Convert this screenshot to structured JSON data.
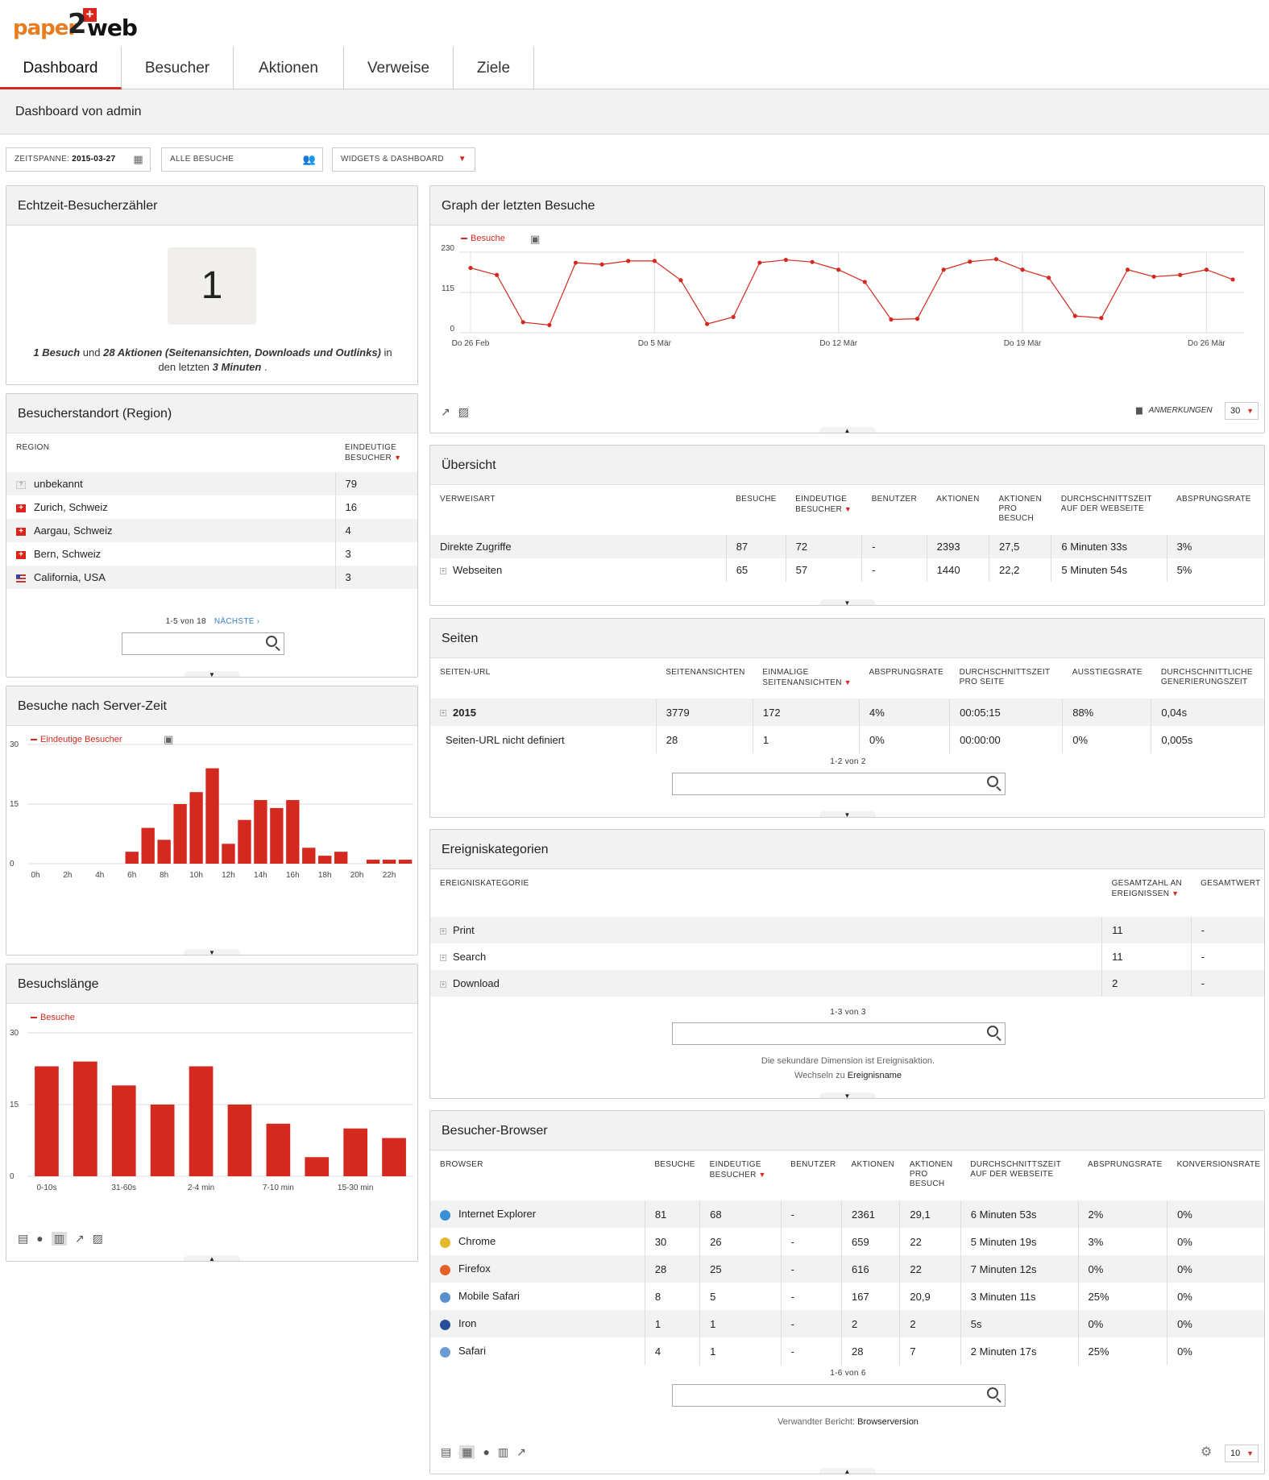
{
  "app": {
    "logo": {
      "text_a": "paper",
      "text_b": "2",
      "text_c": "web"
    },
    "nav": [
      "Dashboard",
      "Besucher",
      "Aktionen",
      "Verweise",
      "Ziele"
    ],
    "dashboard_title": "Dashboard von admin"
  },
  "controls": {
    "period_label": "ZEITSPANNE:",
    "period_value": "2015-03-27",
    "segment": "ALLE BESUCHE",
    "widgets_menu": "WIDGETS & DASHBOARD"
  },
  "realtime": {
    "title": "Echtzeit-Besucherzähler",
    "count": "1",
    "line_a": "1 Besuch",
    "line_b": " und ",
    "line_c": "28 Aktionen (Seitenansichten, Downloads und Outlinks)",
    "line_d": " in den letzten ",
    "line_e": "3 Minuten",
    "line_f": " ."
  },
  "location": {
    "title": "Besucherstandort (Region)",
    "col_region": "REGION",
    "col_unique": "EINDEUTIGE BESUCHER",
    "rows": [
      {
        "name": "unbekannt",
        "flag": "unknown",
        "value": "79"
      },
      {
        "name": "Zurich, Schweiz",
        "flag": "ch",
        "value": "16"
      },
      {
        "name": "Aargau, Schweiz",
        "flag": "ch",
        "value": "4"
      },
      {
        "name": "Bern, Schweiz",
        "flag": "ch",
        "value": "3"
      },
      {
        "name": "California, USA",
        "flag": "us",
        "value": "3"
      }
    ],
    "pager": "1-5 von 18",
    "next": "NÄCHSTE ›"
  },
  "server_time": {
    "title": "Besuche nach Server-Zeit",
    "legend": "Eindeutige Besucher"
  },
  "visit_length": {
    "title": "Besuchslänge",
    "legend": "Besuche"
  },
  "graph": {
    "title": "Graph der letzten Besuche",
    "legend": "Besuche",
    "annotations": "ANMERKUNGEN",
    "limit": "30"
  },
  "overview": {
    "title": "Übersicht",
    "columns": [
      "VERWEISART",
      "BESUCHE",
      "EINDEUTIGE BESUCHER",
      "BENUTZER",
      "AKTIONEN",
      "AKTIONEN PRO BESUCH",
      "DURCHSCHNITTSZEIT AUF DER WEBSEITE",
      "ABSPRUNGSRATE"
    ],
    "rows": [
      [
        "Direkte Zugriffe",
        "87",
        "72",
        "-",
        "2393",
        "27,5",
        "6 Minuten 33s",
        "3%"
      ],
      [
        "Webseiten",
        "65",
        "57",
        "-",
        "1440",
        "22,2",
        "5 Minuten 54s",
        "5%"
      ]
    ]
  },
  "pages": {
    "title": "Seiten",
    "columns": [
      "SEITEN-URL",
      "SEITENANSICHTEN",
      "EINMALIGE SEITENANSICHTEN",
      "ABSPRUNGSRATE",
      "DURCHSCHNITTSZEIT PRO SEITE",
      "AUSSTIEGSRATE",
      "DURCHSCHNITTLICHE GENERIERUNGSZEIT"
    ],
    "rows": [
      [
        "2015",
        "3779",
        "172",
        "4%",
        "00:05:15",
        "88%",
        "0,04s"
      ],
      [
        "Seiten-URL nicht definiert",
        "28",
        "1",
        "0%",
        "00:00:00",
        "0%",
        "0,005s"
      ]
    ],
    "pager": "1-2 von 2"
  },
  "events": {
    "title": "Ereigniskategorien",
    "columns": [
      "EREIGNISKATEGORIE",
      "GESAMTZAHL AN EREIGNISSEN",
      "GESAMTWERT"
    ],
    "rows": [
      [
        "Print",
        "11",
        "-"
      ],
      [
        "Search",
        "11",
        "-"
      ],
      [
        "Download",
        "2",
        "-"
      ]
    ],
    "pager": "1-3 von 3",
    "note_a": "Die sekundäre Dimension ist Ereignisaktion.",
    "note_b": "Wechseln zu",
    "note_link": "Ereignisname"
  },
  "browsers": {
    "title": "Besucher-Browser",
    "columns": [
      "BROWSER",
      "BESUCHE",
      "EINDEUTIGE BESUCHER",
      "BENUTZER",
      "AKTIONEN",
      "AKTIONEN PRO BESUCH",
      "DURCHSCHNITTSZEIT AUF DER WEBSEITE",
      "ABSPRUNGSRATE",
      "KONVERSIONSRATE"
    ],
    "rows": [
      [
        "Internet Explorer",
        "81",
        "68",
        "-",
        "2361",
        "29,1",
        "6 Minuten 53s",
        "2%",
        "0%"
      ],
      [
        "Chrome",
        "30",
        "26",
        "-",
        "659",
        "22",
        "5 Minuten 19s",
        "3%",
        "0%"
      ],
      [
        "Firefox",
        "28",
        "25",
        "-",
        "616",
        "22",
        "7 Minuten 12s",
        "0%",
        "0%"
      ],
      [
        "Mobile Safari",
        "8",
        "5",
        "-",
        "167",
        "20,9",
        "3 Minuten 11s",
        "25%",
        "0%"
      ],
      [
        "Iron",
        "1",
        "1",
        "-",
        "2",
        "2",
        "5s",
        "0%",
        "0%"
      ],
      [
        "Safari",
        "4",
        "1",
        "-",
        "28",
        "7",
        "2 Minuten 17s",
        "25%",
        "0%"
      ]
    ],
    "icon_colors": [
      "#3b8fd6",
      "#e3b92c",
      "#e5622a",
      "#5a8fc9",
      "#2a4f9a",
      "#6b9bd1"
    ],
    "pager": "1-6 von 6",
    "related_a": "Verwandter Bericht:",
    "related_link": "Browserversion",
    "limit": "10"
  },
  "chart_data": [
    {
      "type": "line",
      "title": "Graph der letzten Besuche",
      "series": [
        {
          "name": "Besuche",
          "values": [
            185,
            165,
            30,
            22,
            200,
            195,
            205,
            205,
            150,
            25,
            45,
            200,
            208,
            202,
            180,
            145,
            38,
            40,
            180,
            203,
            210,
            180,
            157,
            48,
            42,
            180,
            160,
            165,
            180,
            152
          ]
        }
      ],
      "x_ticks": [
        "Do 26 Feb",
        "Do 5 Mär",
        "Do 12 Mär",
        "Do 19 Mär",
        "Do 26 Mär"
      ],
      "x_tick_index": [
        0,
        7,
        14,
        21,
        28
      ],
      "y_ticks": [
        "0",
        "115",
        "230"
      ],
      "ylim": [
        0,
        230
      ]
    },
    {
      "type": "bar",
      "title": "Besuche nach Server-Zeit",
      "series": [
        {
          "name": "Eindeutige Besucher",
          "values": [
            0,
            0,
            0,
            0,
            0,
            0,
            3,
            9,
            6,
            15,
            18,
            24,
            5,
            11,
            16,
            14,
            16,
            4,
            2,
            3,
            0,
            1,
            1,
            1
          ]
        }
      ],
      "x_ticks": [
        "0h",
        "2h",
        "4h",
        "6h",
        "8h",
        "10h",
        "12h",
        "14h",
        "16h",
        "18h",
        "20h",
        "22h"
      ],
      "y_ticks": [
        "0",
        "15",
        "30"
      ],
      "ylim": [
        0,
        30
      ]
    },
    {
      "type": "bar",
      "title": "Besuchslänge",
      "series": [
        {
          "name": "Besuche",
          "values": [
            23,
            24,
            19,
            15,
            23,
            15,
            11,
            4,
            10,
            8
          ]
        }
      ],
      "x_ticks": [
        "0-10s",
        "31-60s",
        "2-4 min",
        "7-10 min",
        "15-30 min"
      ],
      "y_ticks": [
        "0",
        "15",
        "30"
      ],
      "ylim": [
        0,
        30
      ]
    }
  ]
}
